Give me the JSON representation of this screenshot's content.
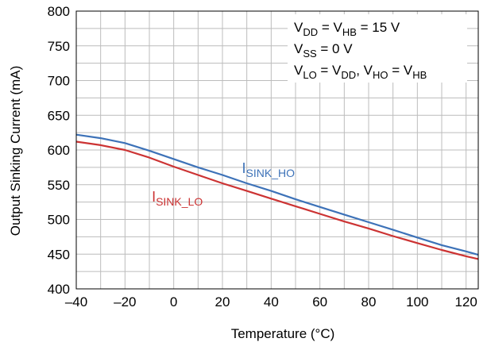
{
  "chart_data": {
    "type": "line",
    "xlabel": "Temperature (°C)",
    "ylabel": "Output Sinking Current (mA)",
    "xlim": [
      -40,
      125
    ],
    "ylim": [
      400,
      800
    ],
    "x_ticks": [
      -40,
      -20,
      0,
      20,
      40,
      60,
      80,
      100,
      120
    ],
    "x_tick_labels": [
      "–40",
      "–20",
      "0",
      "20",
      "40",
      "60",
      "80",
      "100",
      "120"
    ],
    "y_ticks": [
      400,
      450,
      500,
      550,
      600,
      650,
      700,
      750,
      800
    ],
    "grid": true,
    "series": [
      {
        "name": "I_SINK_HO",
        "color": "#3d72b8",
        "x": [
          -40,
          -30,
          -20,
          -10,
          0,
          10,
          20,
          30,
          40,
          50,
          60,
          70,
          80,
          90,
          100,
          110,
          120,
          125
        ],
        "y": [
          622,
          617,
          610,
          599,
          587,
          575,
          564,
          552,
          541,
          529,
          518,
          507,
          496,
          485,
          474,
          463,
          454,
          449
        ]
      },
      {
        "name": "I_SINK_LO",
        "color": "#cc3333",
        "x": [
          -40,
          -30,
          -20,
          -10,
          0,
          10,
          20,
          30,
          40,
          50,
          60,
          70,
          80,
          90,
          100,
          110,
          120,
          125
        ],
        "y": [
          612,
          607,
          600,
          589,
          576,
          564,
          552,
          541,
          530,
          519,
          508,
          497,
          487,
          476,
          466,
          456,
          447,
          443
        ]
      }
    ],
    "series_labels": [
      {
        "main": "I",
        "sub": "SINK_HO",
        "color": "#3d72b8",
        "x": 28,
        "y": 567
      },
      {
        "main": "I",
        "sub": "SINK_LO",
        "color": "#cc3333",
        "x": -9,
        "y": 526
      }
    ],
    "annotations": [
      {
        "parts": [
          {
            "t": "V"
          },
          {
            "s": "DD"
          },
          {
            "t": " = V"
          },
          {
            "s": "HB"
          },
          {
            "t": " = 15 V"
          }
        ]
      },
      {
        "parts": [
          {
            "t": "V"
          },
          {
            "s": "SS"
          },
          {
            "t": " = 0 V"
          }
        ]
      },
      {
        "parts": [
          {
            "t": "V"
          },
          {
            "s": "LO"
          },
          {
            "t": " = V"
          },
          {
            "s": "DD"
          },
          {
            "t": ", V"
          },
          {
            "s": "HO"
          },
          {
            "t": " = V"
          },
          {
            "s": "HB"
          }
        ]
      }
    ]
  }
}
